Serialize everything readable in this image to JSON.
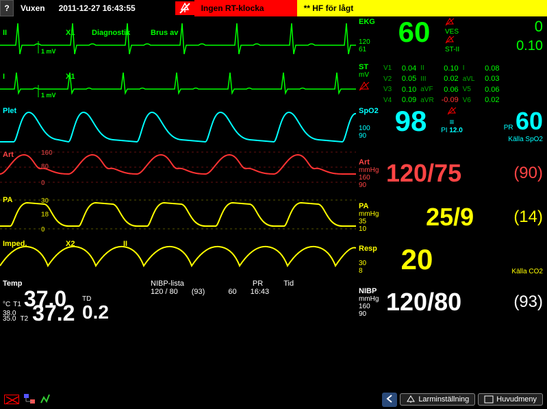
{
  "topbar": {
    "help_icon": "?",
    "mode": "Vuxen",
    "datetime": "2011-12-27 16:43:55",
    "alert_red": "Ingen RT-klocka",
    "alert_yellow": "** HF för lågt"
  },
  "waves": {
    "ecg1": {
      "label": "II",
      "gain": "X1",
      "filter": "Diagnostik",
      "noise": "Brus av",
      "scale": "1 mV",
      "color": "#00ff00"
    },
    "ecg2": {
      "label": "I",
      "gain": "X1",
      "scale": "1 mV",
      "color": "#00ff00"
    },
    "plet": {
      "label": "Plet",
      "color": "#00ffff"
    },
    "art": {
      "label": "Art",
      "hi": "160",
      "mid": "80",
      "lo": "0",
      "color": "#ff3030"
    },
    "pa": {
      "label": "PA",
      "hi": "30",
      "mid": "18",
      "lo": "0",
      "color": "#ffff00"
    },
    "imp": {
      "label": "Imped.",
      "gain": "X2",
      "lead": "II",
      "color": "#ffff00"
    }
  },
  "ekg": {
    "label": "EKG",
    "value": "60",
    "hi_lim": "120",
    "lo_lim": "61",
    "ves_lbl": "VES",
    "ves_val": "0",
    "st2_lbl": "ST-II",
    "st2_val": "0.10"
  },
  "st": {
    "label": "ST",
    "unit": "mV",
    "rows": [
      [
        "V1",
        "0.04",
        "II",
        "0.10",
        "I",
        "0.08"
      ],
      [
        "V2",
        "0.05",
        "III",
        "0.02",
        "aVL",
        "0.03"
      ],
      [
        "V3",
        "0.10",
        "aVF",
        "0.06",
        "V5",
        "0.06"
      ],
      [
        "V4",
        "0.09",
        "aVR",
        "-0.09",
        "V6",
        "0.02"
      ]
    ]
  },
  "spo2": {
    "label": "SpO2",
    "value": "98",
    "hi_lim": "100",
    "lo_lim": "90",
    "pr_lbl": "PR",
    "pr_val": "60",
    "pi_lbl": "PI",
    "pi_val": "12.0",
    "src": "Källa SpO2"
  },
  "art": {
    "label": "Art",
    "unit": "mmHg",
    "value": "120/75",
    "mean": "(90)",
    "hi_lim": "160",
    "lo_lim": "90"
  },
  "pa": {
    "label": "PA",
    "unit": "mmHg",
    "value": "25/9",
    "mean": "(14)",
    "hi_lim": "35",
    "lo_lim": "10"
  },
  "resp": {
    "label": "Resp",
    "value": "20",
    "hi_lim": "30",
    "lo_lim": "8",
    "src": "Källa CO2"
  },
  "temp": {
    "label": "Temp",
    "unit": "°C",
    "t1_lbl": "T1",
    "t1_val": "37.0",
    "t1_hi": "38.0",
    "t1_lo": "35.0",
    "t2_lbl": "T2",
    "t2_val": "37.2",
    "td_lbl": "TD",
    "td_val": "0.2"
  },
  "nibp_list": {
    "label": "NIBP-lista",
    "val": "120  /  80",
    "mean": "(93)",
    "pr_lbl": "PR",
    "pr_val": "60",
    "tid_lbl": "Tid",
    "tid_val": "16:43"
  },
  "nibp": {
    "label": "NIBP",
    "unit": "mmHg",
    "value": "120/80",
    "mean": "(93)",
    "hi_lim": "160",
    "lo_lim": "90"
  },
  "bottom": {
    "alarm_btn": "Larminställning",
    "menu_btn": "Huvudmeny"
  }
}
